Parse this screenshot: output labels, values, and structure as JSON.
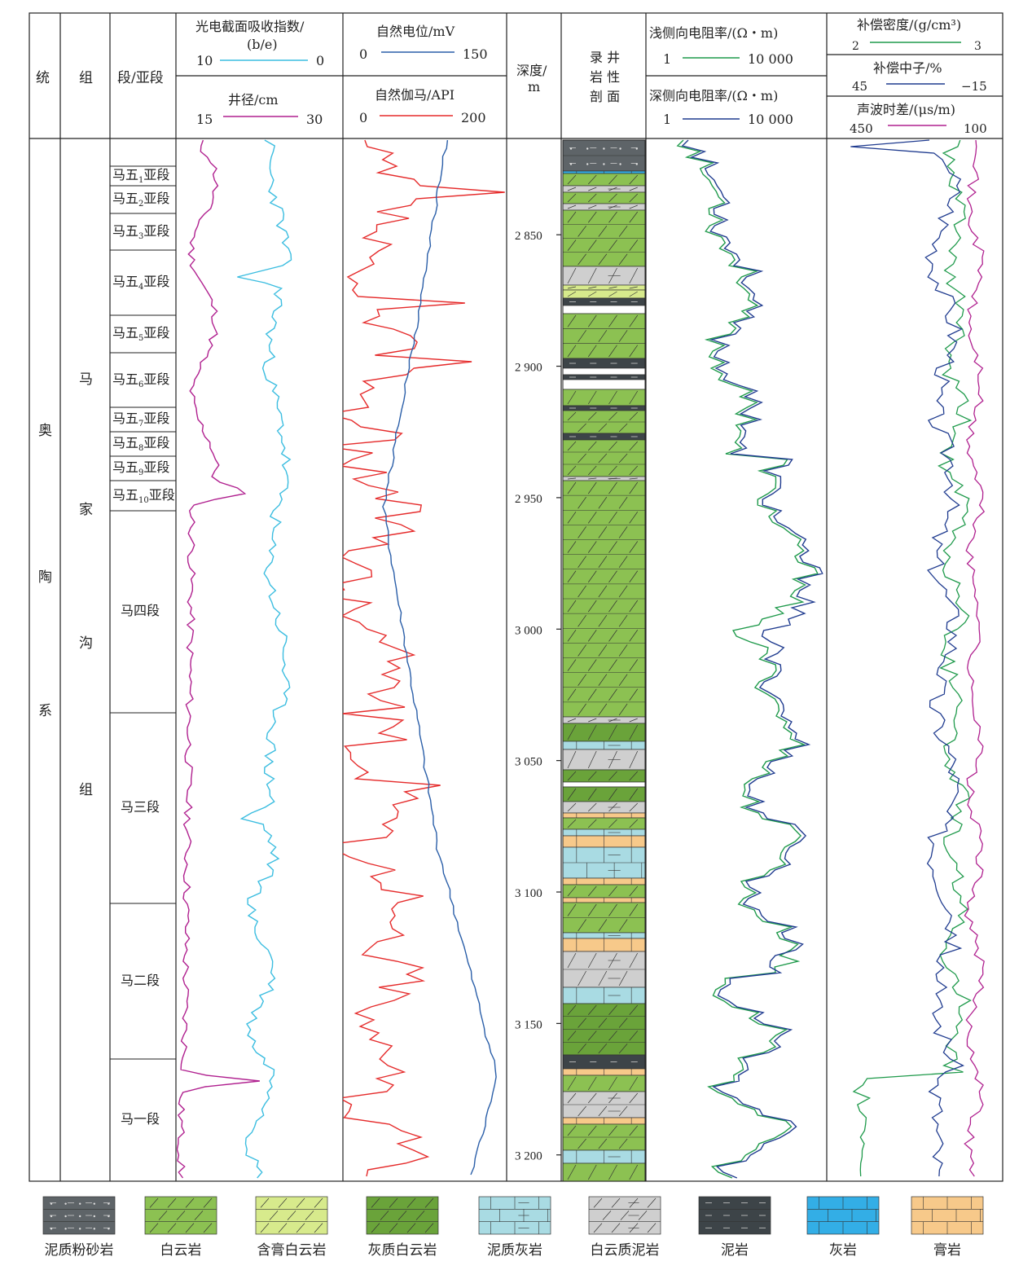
{
  "header": {
    "col_system": "统",
    "col_group": "组",
    "col_segment": "段/亚段",
    "pe_title_line1": "光电截面吸收指数/",
    "pe_title_line2": "(b/e)",
    "pe_min": "10",
    "pe_max": "0",
    "cal_title": "井径/cm",
    "cal_min": "15",
    "cal_max": "30",
    "sp_title": "自然电位/mV",
    "sp_min": "0",
    "sp_max": "150",
    "gr_title": "自然伽马/API",
    "gr_min": "0",
    "gr_max": "200",
    "depth_title_line1": "深度/",
    "depth_title_line2": "m",
    "litho_title": [
      "录 井",
      "岩 性",
      "剖 面"
    ],
    "rs_title": "浅侧向电阻率/(Ω・m)",
    "rs_min": "1",
    "rs_max": "10 000",
    "rd_title": "深侧向电阻率/(Ω・m)",
    "rd_min": "1",
    "rd_max": "10 000",
    "den_title": "补偿密度/(g/cm³)",
    "den_min": "2",
    "den_max": "3",
    "cnl_title": "补偿中子/%",
    "cnl_min": "45",
    "cnl_max": "−15",
    "ac_title": "声波时差/(μs/m)",
    "ac_min": "450",
    "ac_max": "100"
  },
  "strata": {
    "system": [
      "奥",
      "陶",
      "系"
    ],
    "group": [
      "马",
      "家",
      "沟",
      "组"
    ],
    "segments": [
      {
        "label": "马五",
        "sub": "1",
        "suffix": "亚段"
      },
      {
        "label": "马五",
        "sub": "2",
        "suffix": "亚段"
      },
      {
        "label": "马五",
        "sub": "3",
        "suffix": "亚段"
      },
      {
        "label": "马五",
        "sub": "4",
        "suffix": "亚段"
      },
      {
        "label": "马五",
        "sub": "5",
        "suffix": "亚段"
      },
      {
        "label": "马五",
        "sub": "6",
        "suffix": "亚段"
      },
      {
        "label": "马五",
        "sub": "7",
        "suffix": "亚段"
      },
      {
        "label": "马五",
        "sub": "8",
        "suffix": "亚段"
      },
      {
        "label": "马五",
        "sub": "9",
        "suffix": "亚段"
      },
      {
        "label": "马五",
        "sub": "10",
        "suffix": "亚段"
      },
      {
        "label": "马四段",
        "sub": "",
        "suffix": ""
      },
      {
        "label": "马三段",
        "sub": "",
        "suffix": ""
      },
      {
        "label": "马二段",
        "sub": "",
        "suffix": ""
      },
      {
        "label": "马一段",
        "sub": "",
        "suffix": ""
      }
    ]
  },
  "depth_ticks": [
    "2 850",
    "2 900",
    "2 950",
    "3 000",
    "3 050",
    "3 100",
    "3 150",
    "3 200"
  ],
  "colors": {
    "pe": "#3bbde0",
    "cal": "#b0208f",
    "sp": "#2a5ea8",
    "gr": "#e52a2a",
    "rs": "#1f9a4b",
    "rd": "#1f3b8f",
    "den": "#1f9a4b",
    "cnl": "#1f3b8f",
    "ac": "#b0208f",
    "dolomite": "#8cc152",
    "gypsum_dolomite": "#d7ea8c",
    "limy_dolomite": "#6aa33a",
    "marly_limestone": "#a9dbe3",
    "dolomitic_mudstone": "#cfcfcf",
    "mudstone": "#3d4448",
    "limestone": "#33aee6",
    "gypsum": "#f7c98a",
    "silty_mudstone": "#5e6468"
  },
  "legend": [
    "泥质粉砂岩",
    "白云岩",
    "含膏白云岩",
    "灰质白云岩",
    "泥质灰岩",
    "白云质泥岩",
    "泥岩",
    "灰岩",
    "膏岩"
  ]
}
